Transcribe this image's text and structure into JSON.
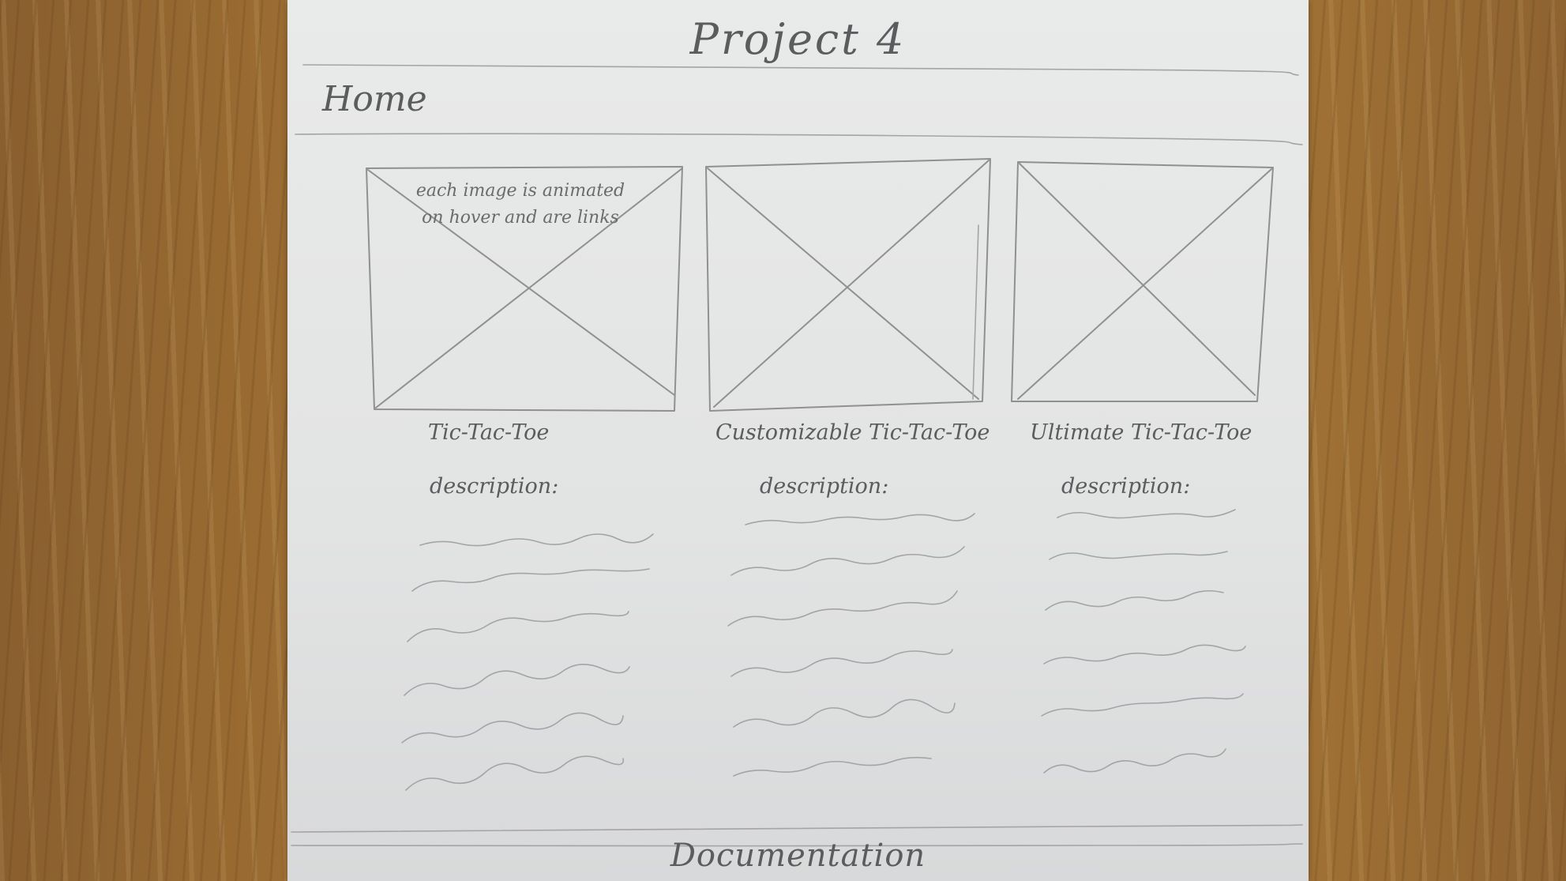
{
  "page": {
    "title": "Project 4",
    "nav_home": "Home",
    "footer_link": "Documentation"
  },
  "cards": [
    {
      "annotation": "each image is animated on hover and are links",
      "title": "Tic-Tac-Toe",
      "description_label": "description:"
    },
    {
      "title": "Customizable Tic-Tac-Toe",
      "description_label": "description:"
    },
    {
      "title": "Ultimate Tic-Tac-Toe",
      "description_label": "description:"
    }
  ]
}
